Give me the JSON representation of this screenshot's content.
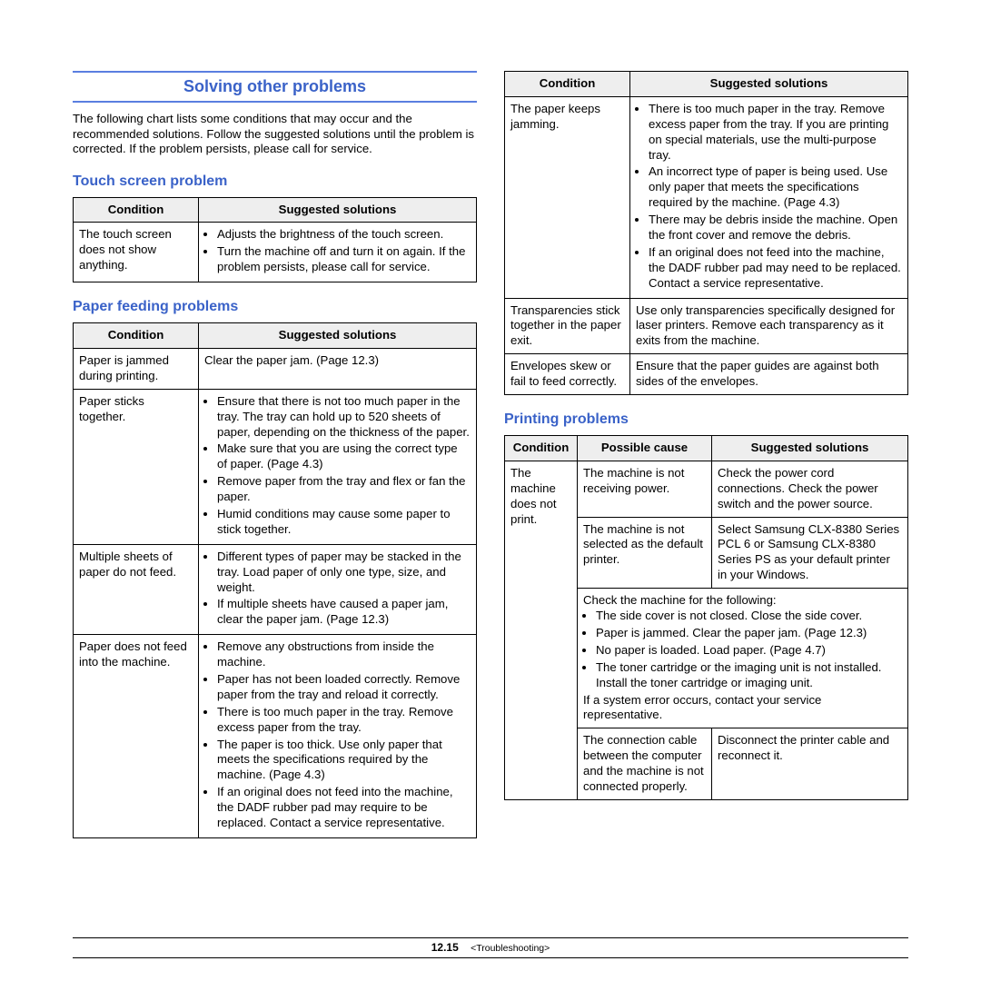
{
  "heading": "Solving other problems",
  "intro": "The following chart lists some conditions that may occur and the recommended solutions. Follow the suggested solutions until the problem is corrected. If the problem persists, please call for service.",
  "labels": {
    "cond": "Condition",
    "sol": "Suggested solutions",
    "cause": "Possible cause"
  },
  "touch": {
    "title": "Touch screen problem",
    "row": {
      "c": "The touch screen does not show anything.",
      "s": [
        "Adjusts the brightness of the touch screen.",
        "Turn the machine off and turn it on again. If the problem persists, please call for service."
      ]
    }
  },
  "paper": {
    "title": "Paper feeding problems",
    "rows": [
      {
        "c": "Paper is jammed during printing.",
        "plain": "Clear the paper jam. (Page 12.3)"
      },
      {
        "c": "Paper sticks together.",
        "s": [
          "Ensure that there is not too much paper in the tray. The tray can hold up to 520 sheets of paper, depending on the thickness of the paper.",
          "Make sure that you are using the correct type of paper. (Page 4.3)",
          "Remove paper from the tray and flex or fan the paper.",
          "Humid conditions may cause some paper to stick together."
        ]
      },
      {
        "c": "Multiple sheets of paper do not feed.",
        "s": [
          "Different types of paper may be stacked in the tray. Load paper of only one type, size, and weight.",
          "If multiple sheets have caused a paper jam, clear the paper jam. (Page 12.3)"
        ]
      },
      {
        "c": "Paper does not feed into the machine.",
        "s": [
          "Remove any obstructions from inside the machine.",
          "Paper has not been loaded correctly. Remove paper from the tray and reload it correctly.",
          "There is too much paper in the tray. Remove excess paper from the tray.",
          "The paper is too thick. Use only paper that meets the specifications required by the machine. (Page 4.3)",
          "If an original does not feed into the machine, the DADF rubber pad may require to be replaced. Contact a service representative."
        ]
      }
    ]
  },
  "cont": {
    "rows": [
      {
        "c": "The paper keeps jamming.",
        "s": [
          "There is too much paper in the tray. Remove excess paper from the tray. If you are printing on special materials, use the multi-purpose tray.",
          "An incorrect type of paper is being used. Use only paper that meets the specifications required by the machine. (Page 4.3)",
          "There may be debris inside the machine. Open the front cover and remove the debris.",
          "If an original does not feed into the machine, the DADF rubber pad may need to be replaced. Contact a service representative."
        ]
      },
      {
        "c": "Transparencies stick together in the paper exit.",
        "plain": "Use only transparencies specifically designed for laser printers. Remove each transparency as it exits from the machine."
      },
      {
        "c": "Envelopes skew or fail to feed correctly.",
        "plain": "Ensure that the paper guides are against both sides of the envelopes."
      }
    ]
  },
  "print": {
    "title": "Printing problems",
    "cond": "The machine does not print.",
    "r1": {
      "cause": "The machine is not receiving power.",
      "sol": "Check the power cord connections. Check the power switch and the power source."
    },
    "r2": {
      "cause": "The machine is not selected as the default printer.",
      "sol": "Select Samsung CLX-8380 Series PCL 6 or Samsung CLX-8380 Series PS as your default printer in your Windows."
    },
    "r3": {
      "lead": "Check the machine for the following:",
      "b": [
        "The side cover is not closed. Close the side cover.",
        "Paper is jammed. Clear the paper jam. (Page 12.3)",
        "No paper is loaded. Load paper. (Page 4.7)",
        "The toner cartridge or the imaging unit is not installed. Install the toner cartridge or imaging unit."
      ],
      "tail": "If a system error occurs, contact your service representative."
    },
    "r4": {
      "cause": "The connection cable between the computer and the machine is not connected properly.",
      "sol": "Disconnect the printer cable and reconnect it."
    }
  },
  "footer": {
    "page": "12.15",
    "section": "<Troubleshooting>"
  }
}
